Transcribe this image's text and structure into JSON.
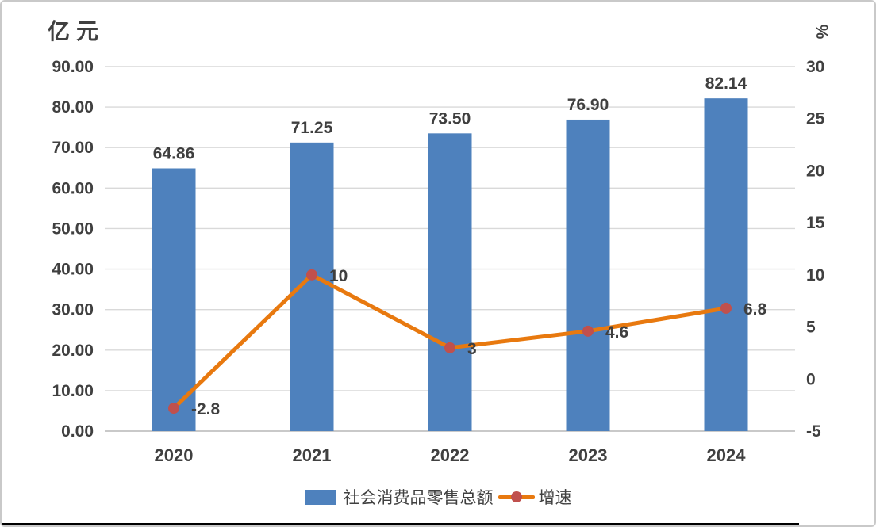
{
  "chart_data": {
    "type": "bar",
    "subtype": "combo bar + line, dual axis",
    "categories": [
      "2020",
      "2021",
      "2022",
      "2023",
      "2024"
    ],
    "series": [
      {
        "name": "社会消费品零售总额",
        "render": "bar",
        "axis": "left",
        "color": "#4E81BD",
        "values": [
          64.86,
          71.25,
          73.5,
          76.9,
          82.14
        ],
        "data_labels": [
          "64.86",
          "71.25",
          "73.50",
          "76.90",
          "82.14"
        ]
      },
      {
        "name": "增速",
        "render": "line",
        "axis": "right",
        "line_color": "#E8790F",
        "marker_color": "#C0504D",
        "values": [
          -2.8,
          10,
          3,
          4.6,
          6.8
        ],
        "data_labels": [
          "-2.8",
          "10",
          "3",
          "4.6",
          "6.8"
        ]
      }
    ],
    "left_axis": {
      "title": "亿元",
      "min": 0,
      "max": 90,
      "step": 10,
      "ticks": [
        "0.00",
        "10.00",
        "20.00",
        "30.00",
        "40.00",
        "50.00",
        "60.00",
        "70.00",
        "80.00",
        "90.00"
      ]
    },
    "right_axis": {
      "title": "%",
      "min": -5,
      "max": 30,
      "step": 5,
      "ticks": [
        "-5",
        "0",
        "5",
        "10",
        "15",
        "20",
        "25",
        "30"
      ]
    },
    "grid": true,
    "legend_position": "bottom",
    "colors": {
      "text": "#404040",
      "data_label_text": "#3F3F3F",
      "grid": "#D9D9D9",
      "axis_line": "#C9C9C9",
      "frame_border": "#C9C9C9",
      "bottom_rule": "#000000",
      "background": "#FFFFFF"
    }
  }
}
